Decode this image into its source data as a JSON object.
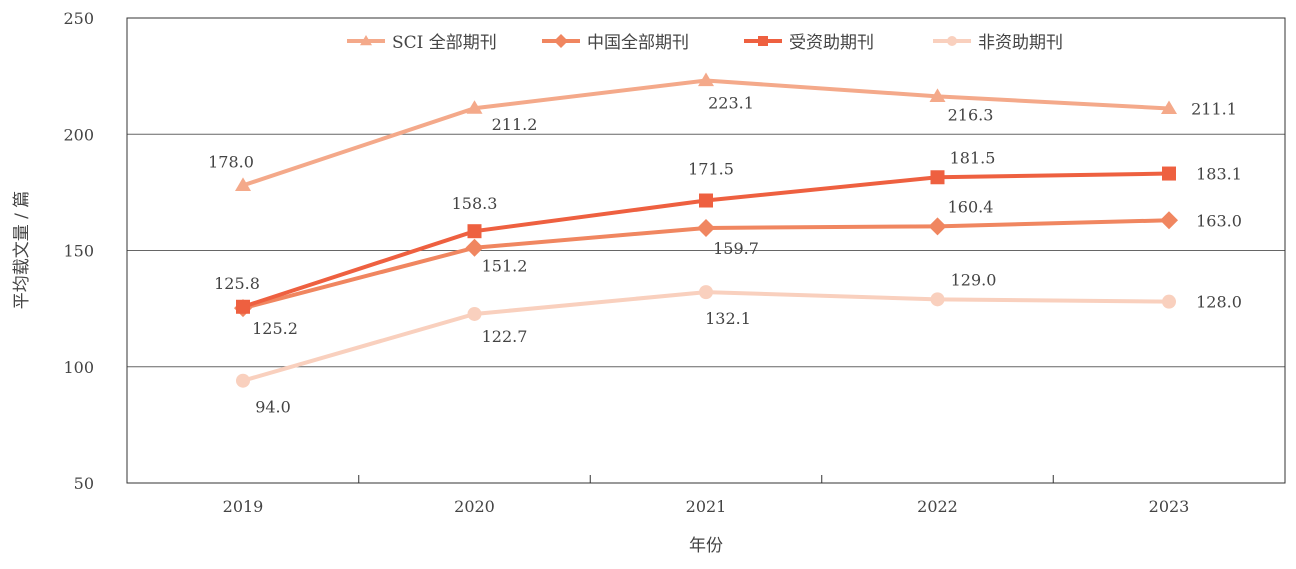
{
  "chart_data": {
    "type": "line",
    "title": "",
    "xlabel": "年份",
    "ylabel": "平均载文量 / 篇",
    "ylim": [
      50,
      250
    ],
    "yticks": [
      50,
      100,
      150,
      200,
      250
    ],
    "categories": [
      "2019",
      "2020",
      "2021",
      "2022",
      "2023"
    ],
    "grid": "horizontal",
    "legend_position": "top-center",
    "series": [
      {
        "name": "SCI 全部期刊",
        "marker": "triangle",
        "color": "#F4A98A",
        "values": [
          178.0,
          211.2,
          223.1,
          216.3,
          211.1
        ],
        "labels": [
          "178.0",
          "211.2",
          "223.1",
          "216.3",
          "211.1"
        ]
      },
      {
        "name": "中国全部期刊",
        "marker": "diamond",
        "color": "#F08660",
        "values": [
          125.2,
          151.2,
          159.7,
          160.4,
          163.0
        ],
        "labels": [
          "125.2",
          "151.2",
          "159.7",
          "160.4",
          "163.0"
        ]
      },
      {
        "name": "受资助期刊",
        "marker": "square",
        "color": "#EE6040",
        "values": [
          125.8,
          158.3,
          171.5,
          181.5,
          183.1
        ],
        "labels": [
          "125.8",
          "158.3",
          "171.5",
          "181.5",
          "183.1"
        ]
      },
      {
        "name": "非资助期刊",
        "marker": "circle",
        "color": "#F9D0BE",
        "values": [
          94.0,
          122.7,
          132.1,
          129.0,
          128.0
        ],
        "labels": [
          "94.0",
          "122.7",
          "132.1",
          "129.0",
          "128.0"
        ]
      }
    ]
  }
}
